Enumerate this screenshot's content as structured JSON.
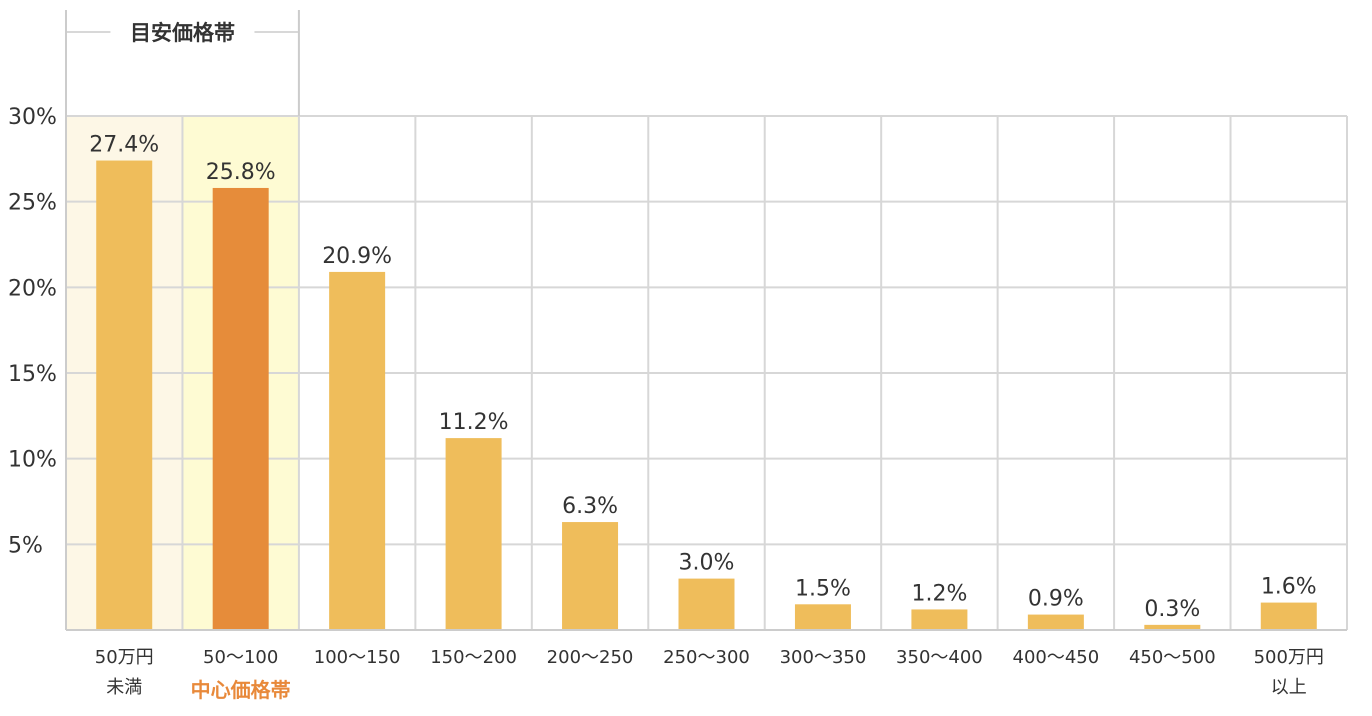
{
  "chart_data": {
    "type": "bar",
    "categories": [
      [
        "50万円",
        "未満"
      ],
      [
        "50〜100"
      ],
      [
        "100〜150"
      ],
      [
        "150〜200"
      ],
      [
        "200〜250"
      ],
      [
        "250〜300"
      ],
      [
        "300〜350"
      ],
      [
        "350〜400"
      ],
      [
        "400〜450"
      ],
      [
        "450〜500"
      ],
      [
        "500万円",
        "以上"
      ]
    ],
    "values": [
      27.4,
      25.8,
      20.9,
      11.2,
      6.3,
      3.0,
      1.5,
      1.2,
      0.9,
      0.3,
      1.6
    ],
    "data_labels": [
      "27.4%",
      "25.8%",
      "20.9%",
      "11.2%",
      "6.3%",
      "3.0%",
      "1.5%",
      "1.2%",
      "0.9%",
      "0.3%",
      "1.6%"
    ],
    "yticks": [
      {
        "value": 5,
        "label": "5%"
      },
      {
        "value": 10,
        "label": "10%"
      },
      {
        "value": 15,
        "label": "15%"
      },
      {
        "value": 20,
        "label": "20%"
      },
      {
        "value": 25,
        "label": "25%"
      },
      {
        "value": 30,
        "label": "30%"
      }
    ],
    "ylim": [
      0,
      30
    ],
    "grid": true,
    "highlight_band": {
      "title": "目安価格帯",
      "category_indices": [
        0,
        1
      ]
    },
    "center_band": {
      "label": "中心価格帯",
      "category_index": 1
    },
    "colors": {
      "bar": "#efbd5b",
      "bar_highlight": "#e68c3a",
      "band_bg_1": "#fdf7e6",
      "band_bg_2": "#fefbd3",
      "grid": "#d7d7d7",
      "axis": "#cccccc",
      "center_label": "#e8893a",
      "text": "#333333"
    }
  }
}
